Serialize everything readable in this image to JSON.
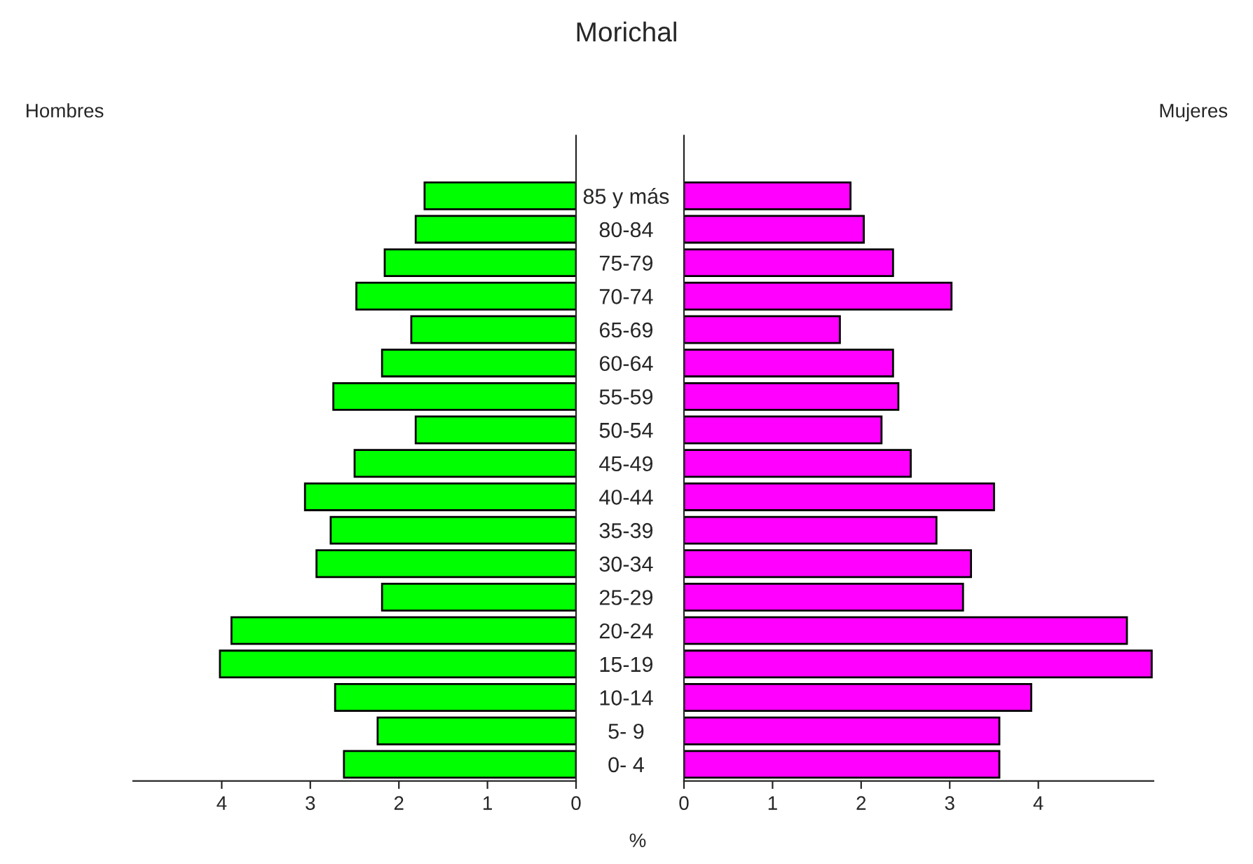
{
  "chart_data": [
    {
      "type": "bar",
      "orientation": "horizontal",
      "title": "Morichal",
      "ylabel": "Hombres",
      "xlabel": "%",
      "categories": [
        "85 y más",
        "80-84",
        "75-79",
        "70-74",
        "65-69",
        "60-64",
        "55-59",
        "50-54",
        "45-49",
        "40-44",
        "35-39",
        "30-34",
        "25-29",
        "20-24",
        "15-19",
        "10-14",
        "5- 9",
        "0- 4"
      ],
      "series": [
        {
          "color": "#00ff00",
          "values": [
            1.71,
            1.81,
            2.16,
            2.48,
            1.86,
            2.19,
            2.74,
            1.81,
            2.5,
            3.06,
            2.77,
            2.93,
            2.19,
            3.89,
            4.02,
            2.72,
            2.24,
            2.62
          ]
        }
      ],
      "xlim": [
        5,
        0
      ],
      "xticks": [
        4,
        3,
        2,
        1,
        0
      ],
      "grid": false,
      "legend": false
    },
    {
      "type": "bar",
      "orientation": "horizontal",
      "ylabel": "Mujeres",
      "series": [
        {
          "color": "#ff00ff",
          "values": [
            1.88,
            2.03,
            2.36,
            3.02,
            1.76,
            2.36,
            2.42,
            2.23,
            2.56,
            3.5,
            2.85,
            3.24,
            3.15,
            5.0,
            5.28,
            3.92,
            3.56,
            3.56
          ]
        }
      ],
      "xlim": [
        0,
        5.3
      ],
      "xticks": [
        0,
        1,
        2,
        3,
        4
      ],
      "tick_labels": "x",
      "grid": false,
      "legend": false
    }
  ]
}
